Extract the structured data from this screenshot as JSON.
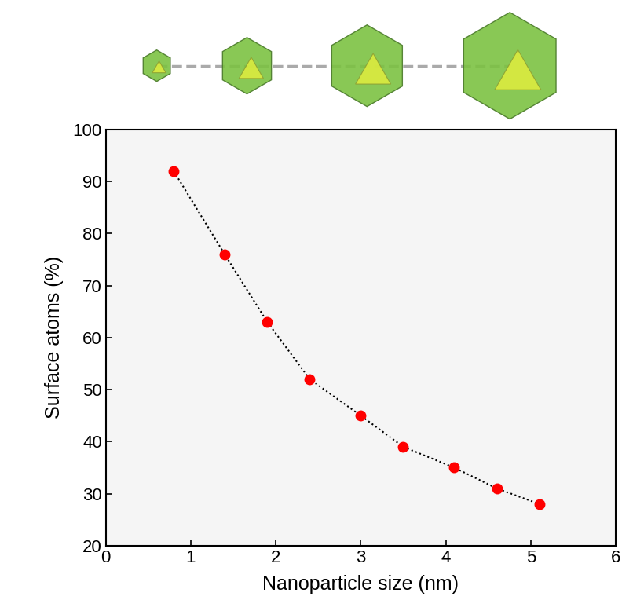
{
  "chart_data": {
    "type": "line",
    "x_label": "Nanoparticle size (nm)",
    "y_label": "Surface atoms (%)",
    "x": [
      0.8,
      1.4,
      1.9,
      2.4,
      3.0,
      3.5,
      4.1,
      4.6,
      5.1
    ],
    "values": [
      92,
      76,
      63,
      52,
      45,
      39,
      35,
      31,
      28
    ],
    "color": "#ff0000",
    "marker": "o",
    "line_style": "dotted",
    "xlim": [
      0,
      6
    ],
    "xticks": [
      0,
      1,
      2,
      3,
      4,
      5,
      6
    ],
    "ylim": [
      20,
      100
    ],
    "yticks": [
      20,
      30,
      40,
      50,
      60,
      70,
      80,
      90,
      100
    ],
    "grid": false
  }
}
